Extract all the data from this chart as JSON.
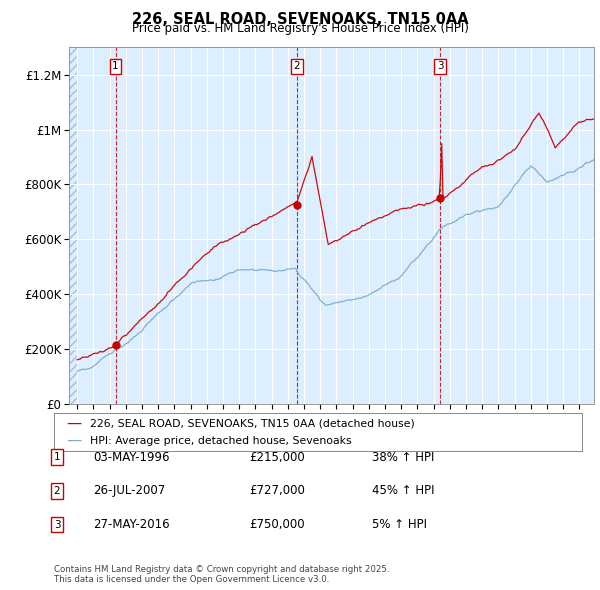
{
  "title": "226, SEAL ROAD, SEVENOAKS, TN15 0AA",
  "subtitle": "Price paid vs. HM Land Registry's House Price Index (HPI)",
  "transactions": [
    {
      "num": 1,
      "date_label": "03-MAY-1996",
      "date_x": 1996.37,
      "price": 215000,
      "hpi_pct": "38% ↑ HPI"
    },
    {
      "num": 2,
      "date_label": "26-JUL-2007",
      "date_x": 2007.57,
      "price": 727000,
      "hpi_pct": "45% ↑ HPI"
    },
    {
      "num": 3,
      "date_label": "27-MAY-2016",
      "date_x": 2016.41,
      "price": 750000,
      "hpi_pct": "5% ↑ HPI"
    }
  ],
  "legend_line1": "226, SEAL ROAD, SEVENOAKS, TN15 0AA (detached house)",
  "legend_line2": "HPI: Average price, detached house, Sevenoaks",
  "footnote": "Contains HM Land Registry data © Crown copyright and database right 2025.\nThis data is licensed under the Open Government Licence v3.0.",
  "price_line_color": "#cc0000",
  "hpi_line_color": "#7aadcf",
  "dashed_vline_color": "#cc0000",
  "ylim": [
    0,
    1300000
  ],
  "xlim_start": 1993.5,
  "xlim_end": 2025.9,
  "ylabel_ticks": [
    0,
    200000,
    400000,
    600000,
    800000,
    1000000,
    1200000
  ],
  "ylabel_labels": [
    "£0",
    "£200K",
    "£400K",
    "£600K",
    "£800K",
    "£1M",
    "£1.2M"
  ]
}
